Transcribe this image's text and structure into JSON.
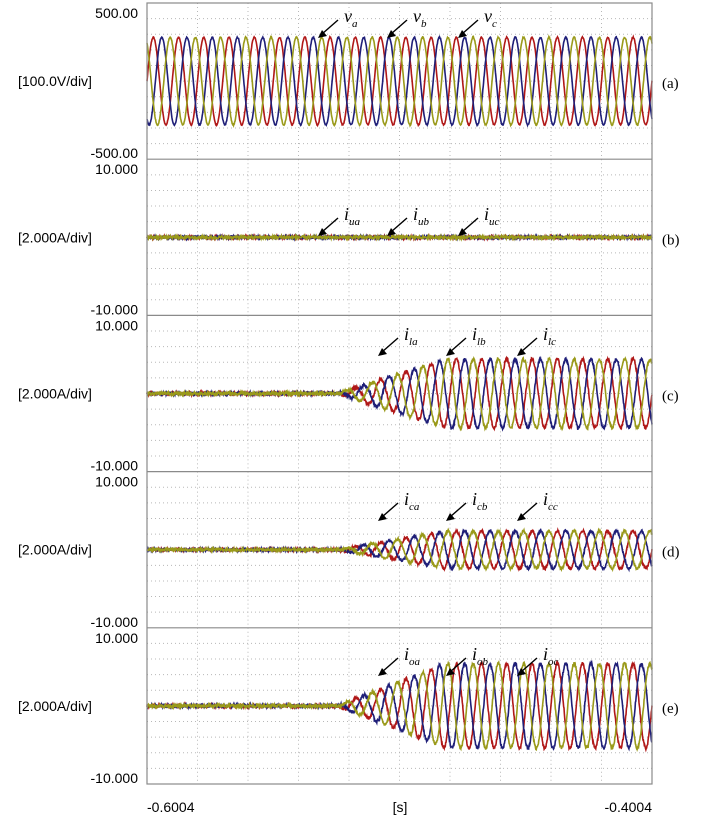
{
  "chart_data": [
    {
      "type": "line",
      "panel_tag": "(a)",
      "ymax_label": "500.00",
      "ymin_label": "-500.00",
      "scale_label": "[100.0V/div]",
      "ylim": [
        -500,
        500
      ],
      "xlim": [
        -0.6004,
        -0.4004
      ],
      "waveform": {
        "frequency_hz": 100,
        "amplitude": 280,
        "ramp_start_s": null,
        "ramp_end_s": null,
        "noise": 4
      },
      "series": [
        {
          "name": "v_a",
          "label_main": "v",
          "label_sub": "a",
          "color": "#b01818",
          "phase_deg": 0
        },
        {
          "name": "v_b",
          "label_main": "v",
          "label_sub": "b",
          "color": "#1f1f78",
          "phase_deg": -120
        },
        {
          "name": "v_c",
          "label_main": "v",
          "label_sub": "c",
          "color": "#9a9a1a",
          "phase_deg": 120
        }
      ]
    },
    {
      "type": "line",
      "panel_tag": "(b)",
      "ymax_label": "10.000",
      "ymin_label": "-10.000",
      "scale_label": "[2.000A/div]",
      "ylim": [
        -10,
        10
      ],
      "xlim": [
        -0.6004,
        -0.4004
      ],
      "waveform": {
        "frequency_hz": 100,
        "amplitude": 0,
        "ramp_start_s": null,
        "ramp_end_s": null,
        "noise": 0.18
      },
      "series": [
        {
          "name": "i_ua",
          "label_main": "i",
          "label_sub": "ua",
          "color": "#b01818",
          "phase_deg": 0
        },
        {
          "name": "i_ub",
          "label_main": "i",
          "label_sub": "ub",
          "color": "#1f1f78",
          "phase_deg": -120
        },
        {
          "name": "i_uc",
          "label_main": "i",
          "label_sub": "uc",
          "color": "#9a9a1a",
          "phase_deg": 120
        }
      ]
    },
    {
      "type": "line",
      "panel_tag": "(c)",
      "ymax_label": "10.000",
      "ymin_label": "-10.000",
      "scale_label": "[2.000A/div]",
      "ylim": [
        -10,
        10
      ],
      "xlim": [
        -0.6004,
        -0.4004
      ],
      "waveform": {
        "frequency_hz": 100,
        "amplitude": 4.4,
        "ramp_start_s": -0.5252,
        "ramp_end_s": -0.4824,
        "noise": 0.22
      },
      "series": [
        {
          "name": "i_la",
          "label_main": "i",
          "label_sub": "la",
          "color": "#b01818",
          "phase_deg": 0
        },
        {
          "name": "i_lb",
          "label_main": "i",
          "label_sub": "lb",
          "color": "#1f1f78",
          "phase_deg": -120
        },
        {
          "name": "i_lc",
          "label_main": "i",
          "label_sub": "lc",
          "color": "#9a9a1a",
          "phase_deg": 120
        }
      ]
    },
    {
      "type": "line",
      "panel_tag": "(d)",
      "ymax_label": "10.000",
      "ymin_label": "-10.000",
      "scale_label": "[2.000A/div]",
      "ylim": [
        -10,
        10
      ],
      "xlim": [
        -0.6004,
        -0.4004
      ],
      "waveform": {
        "frequency_hz": 100,
        "amplitude": 2.4,
        "ramp_start_s": -0.5252,
        "ramp_end_s": -0.4824,
        "noise": 0.18
      },
      "series": [
        {
          "name": "i_ca",
          "label_main": "i",
          "label_sub": "ca",
          "color": "#b01818",
          "phase_deg": 0
        },
        {
          "name": "i_cb",
          "label_main": "i",
          "label_sub": "cb",
          "color": "#1f1f78",
          "phase_deg": -120
        },
        {
          "name": "i_cc",
          "label_main": "i",
          "label_sub": "cc",
          "color": "#9a9a1a",
          "phase_deg": 120
        }
      ]
    },
    {
      "type": "line",
      "panel_tag": "(e)",
      "ymax_label": "10.000",
      "ymin_label": "-10.000",
      "scale_label": "[2.000A/div]",
      "ylim": [
        -10,
        10
      ],
      "xlim": [
        -0.6004,
        -0.4004
      ],
      "waveform": {
        "frequency_hz": 100,
        "amplitude": 5.4,
        "ramp_start_s": -0.5252,
        "ramp_end_s": -0.4824,
        "noise": 0.22
      },
      "series": [
        {
          "name": "i_oa",
          "label_main": "i",
          "label_sub": "oa",
          "color": "#b01818",
          "phase_deg": 0
        },
        {
          "name": "i_ob",
          "label_main": "i",
          "label_sub": "ob",
          "color": "#1f1f78",
          "phase_deg": -120
        },
        {
          "name": "i_oc",
          "label_main": "i",
          "label_sub": "oc",
          "color": "#9a9a1a",
          "phase_deg": 120
        }
      ]
    }
  ],
  "x_axis": {
    "label": "[s]",
    "tick_left": "-0.6004",
    "tick_right": "-0.4004"
  },
  "style": {
    "grid_color": "#b8b8b8",
    "frame_color": "#8a8a8a",
    "grid": true
  }
}
